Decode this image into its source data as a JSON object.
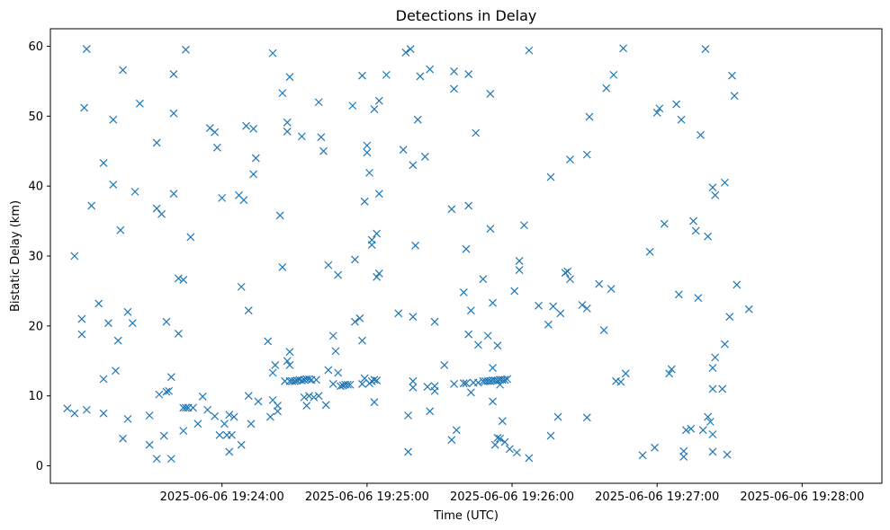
{
  "chart_data": {
    "type": "scatter",
    "title": "Detections in Delay",
    "xlabel": "Time (UTC)",
    "ylabel": "Bistatic Delay (km)",
    "x_ticks": [
      "2025-06-06 19:24:00",
      "2025-06-06 19:25:00",
      "2025-06-06 19:26:00",
      "2025-06-06 19:27:00",
      "2025-06-06 19:28:00"
    ],
    "y_ticks": [
      "0",
      "10",
      "20",
      "30",
      "40",
      "50",
      "60"
    ],
    "xlim": [
      "2025-06-06 19:22:49",
      "2025-06-06 19:28:33"
    ],
    "ylim": [
      -2.5,
      62.5
    ],
    "grid": false,
    "marker": "x",
    "color": "#1f77b4",
    "x_start_time": "2025-06-06 19:22:56",
    "points": [
      [
        0,
        8.2
      ],
      [
        3,
        7.5
      ],
      [
        3,
        30
      ],
      [
        6,
        18.8
      ],
      [
        6,
        21
      ],
      [
        7,
        51.2
      ],
      [
        8,
        8
      ],
      [
        8,
        59.6
      ],
      [
        10,
        37.2
      ],
      [
        13,
        23.2
      ],
      [
        15,
        7.5
      ],
      [
        15,
        43.3
      ],
      [
        15,
        12.4
      ],
      [
        17,
        20.4
      ],
      [
        19,
        49.5
      ],
      [
        19,
        40.2
      ],
      [
        20,
        13.6
      ],
      [
        21,
        17.9
      ],
      [
        22,
        33.7
      ],
      [
        23,
        3.9
      ],
      [
        23,
        56.6
      ],
      [
        25,
        22
      ],
      [
        25,
        6.7
      ],
      [
        27,
        20.4
      ],
      [
        28,
        39.2
      ],
      [
        30,
        51.8
      ],
      [
        34,
        7.2
      ],
      [
        34,
        3
      ],
      [
        37,
        1
      ],
      [
        37,
        46.2
      ],
      [
        37,
        36.8
      ],
      [
        38,
        10.2
      ],
      [
        39,
        36
      ],
      [
        40,
        4.3
      ],
      [
        41,
        10.6
      ],
      [
        41,
        20.6
      ],
      [
        42,
        10.7
      ],
      [
        43,
        12.7
      ],
      [
        43,
        1
      ],
      [
        44,
        50.4
      ],
      [
        44,
        56
      ],
      [
        44,
        38.9
      ],
      [
        46,
        18.9
      ],
      [
        46,
        26.8
      ],
      [
        48,
        5
      ],
      [
        48,
        8.3
      ],
      [
        48,
        26.6
      ],
      [
        49,
        59.5
      ],
      [
        49,
        8.3
      ],
      [
        50,
        8.3
      ],
      [
        51,
        32.7
      ],
      [
        52,
        8.3
      ],
      [
        54,
        6
      ],
      [
        56,
        9.9
      ],
      [
        58,
        8
      ],
      [
        59,
        48.3
      ],
      [
        61,
        47.7
      ],
      [
        61,
        7.1
      ],
      [
        62,
        45.5
      ],
      [
        63,
        4.4
      ],
      [
        64,
        38.3
      ],
      [
        65,
        6
      ],
      [
        66,
        4.4
      ],
      [
        67,
        2
      ],
      [
        67,
        7.3
      ],
      [
        68,
        4.4
      ],
      [
        69,
        7
      ],
      [
        71,
        38.7
      ],
      [
        72,
        25.6
      ],
      [
        72,
        3
      ],
      [
        73,
        38
      ],
      [
        74,
        48.6
      ],
      [
        75,
        10
      ],
      [
        75,
        22.2
      ],
      [
        76,
        6
      ],
      [
        77,
        41.7
      ],
      [
        77,
        48.2
      ],
      [
        78,
        44
      ],
      [
        79,
        9.2
      ],
      [
        83,
        17.8
      ],
      [
        84,
        7
      ],
      [
        85,
        13.3
      ],
      [
        85,
        9.4
      ],
      [
        85,
        59
      ],
      [
        86,
        14.4
      ],
      [
        87,
        7.8
      ],
      [
        87,
        8.6
      ],
      [
        88,
        35.8
      ],
      [
        89,
        53.3
      ],
      [
        89,
        28.4
      ],
      [
        90,
        12.1
      ],
      [
        91,
        49.1
      ],
      [
        91,
        47.8
      ],
      [
        91,
        15
      ],
      [
        92,
        16.3
      ],
      [
        92,
        55.6
      ],
      [
        92,
        14.4
      ],
      [
        92,
        12.1
      ],
      [
        93,
        12.1
      ],
      [
        94,
        12.1
      ],
      [
        95,
        12.2
      ],
      [
        96,
        12.3
      ],
      [
        97,
        12.2
      ],
      [
        97,
        47.1
      ],
      [
        98,
        12.3
      ],
      [
        98,
        9.8
      ],
      [
        99,
        12.4
      ],
      [
        99,
        8.6
      ],
      [
        100,
        12.4
      ],
      [
        100,
        10
      ],
      [
        101,
        12.3
      ],
      [
        102,
        9.8
      ],
      [
        103,
        12.3
      ],
      [
        104,
        10
      ],
      [
        104,
        52
      ],
      [
        105,
        47
      ],
      [
        106,
        45
      ],
      [
        107,
        8.7
      ],
      [
        108,
        13.7
      ],
      [
        108,
        28.7
      ],
      [
        110,
        11.7
      ],
      [
        110,
        18.6
      ],
      [
        111,
        16.4
      ],
      [
        112,
        27.3
      ],
      [
        112,
        13.3
      ],
      [
        113,
        11.4
      ],
      [
        114,
        11.5
      ],
      [
        115,
        11.6
      ],
      [
        116,
        11.6
      ],
      [
        117,
        11.6
      ],
      [
        118,
        51.5
      ],
      [
        119,
        29.5
      ],
      [
        119,
        20.6
      ],
      [
        121,
        21.1
      ],
      [
        122,
        11.7
      ],
      [
        122,
        17.9
      ],
      [
        122,
        55.8
      ],
      [
        123,
        12.5
      ],
      [
        123,
        37.8
      ],
      [
        124,
        45.8
      ],
      [
        124,
        44.8
      ],
      [
        125,
        11.8
      ],
      [
        125,
        41.9
      ],
      [
        126,
        12.1
      ],
      [
        126,
        32.3
      ],
      [
        126,
        31.6
      ],
      [
        127,
        12.3
      ],
      [
        127,
        51
      ],
      [
        127,
        9.1
      ],
      [
        128,
        12.2
      ],
      [
        128,
        33.2
      ],
      [
        128,
        27
      ],
      [
        129,
        38.9
      ],
      [
        129,
        27.5
      ],
      [
        129,
        52.2
      ],
      [
        132,
        55.9
      ],
      [
        137,
        21.8
      ],
      [
        139,
        45.2
      ],
      [
        140,
        59.1
      ],
      [
        141,
        7.2
      ],
      [
        141,
        2
      ],
      [
        142,
        59.6
      ],
      [
        143,
        43
      ],
      [
        143,
        12.1
      ],
      [
        143,
        21.3
      ],
      [
        143,
        11.2
      ],
      [
        144,
        31.5
      ],
      [
        145,
        49.5
      ],
      [
        146,
        55.7
      ],
      [
        148,
        44.2
      ],
      [
        149,
        11.3
      ],
      [
        150,
        56.7
      ],
      [
        150,
        7.8
      ],
      [
        152,
        11.4
      ],
      [
        152,
        10.7
      ],
      [
        152,
        20.6
      ],
      [
        156,
        14.4
      ],
      [
        159,
        3.7
      ],
      [
        159,
        36.7
      ],
      [
        160,
        11.7
      ],
      [
        160,
        56.4
      ],
      [
        160,
        53.9
      ],
      [
        161,
        5.1
      ],
      [
        164,
        11.8
      ],
      [
        164,
        24.8
      ],
      [
        165,
        11.8
      ],
      [
        165,
        31
      ],
      [
        166,
        18.8
      ],
      [
        166,
        37.2
      ],
      [
        166,
        56
      ],
      [
        167,
        22.2
      ],
      [
        167,
        10.5
      ],
      [
        168,
        11.9
      ],
      [
        169,
        47.6
      ],
      [
        170,
        17.3
      ],
      [
        170,
        11.9
      ],
      [
        172,
        12.1
      ],
      [
        172,
        26.7
      ],
      [
        173,
        12.1
      ],
      [
        174,
        12.1
      ],
      [
        174,
        18.6
      ],
      [
        175,
        12.1
      ],
      [
        175,
        53.2
      ],
      [
        175,
        33.9
      ],
      [
        176,
        12.2
      ],
      [
        176,
        23.3
      ],
      [
        176,
        14
      ],
      [
        176,
        9.2
      ],
      [
        177,
        12.2
      ],
      [
        177,
        3
      ],
      [
        178,
        12.2
      ],
      [
        178,
        17.2
      ],
      [
        178,
        4
      ],
      [
        179,
        12.3
      ],
      [
        179,
        11.6
      ],
      [
        179,
        3.9
      ],
      [
        180,
        12.3
      ],
      [
        180,
        6.4
      ],
      [
        181,
        12.3
      ],
      [
        181,
        3.4
      ],
      [
        182,
        12.4
      ],
      [
        183,
        2.4
      ],
      [
        185,
        25
      ],
      [
        186,
        1.9
      ],
      [
        187,
        29.3
      ],
      [
        187,
        28
      ],
      [
        189,
        34.4
      ],
      [
        191,
        59.4
      ],
      [
        191,
        1.1
      ],
      [
        195,
        22.9
      ],
      [
        199,
        20.2
      ],
      [
        200,
        41.3
      ],
      [
        200,
        4.3
      ],
      [
        201,
        22.8
      ],
      [
        203,
        7
      ],
      [
        204,
        21.8
      ],
      [
        206,
        27.6
      ],
      [
        207,
        27.8
      ],
      [
        208,
        43.8
      ],
      [
        208,
        26.7
      ],
      [
        213,
        23
      ],
      [
        215,
        6.9
      ],
      [
        215,
        22.5
      ],
      [
        215,
        44.5
      ],
      [
        216,
        49.9
      ],
      [
        220,
        26
      ],
      [
        222,
        19.4
      ],
      [
        223,
        54
      ],
      [
        225,
        25.3
      ],
      [
        226,
        55.9
      ],
      [
        227,
        12.1
      ],
      [
        229,
        12
      ],
      [
        230,
        59.7
      ],
      [
        231,
        13.2
      ],
      [
        238,
        1.5
      ],
      [
        241,
        30.6
      ],
      [
        243,
        2.6
      ],
      [
        244,
        50.5
      ],
      [
        245,
        51.1
      ],
      [
        247,
        34.6
      ],
      [
        249,
        13.2
      ],
      [
        250,
        13.8
      ],
      [
        252,
        51.7
      ],
      [
        253,
        24.5
      ],
      [
        254,
        49.5
      ],
      [
        255,
        1.3
      ],
      [
        255,
        2.1
      ],
      [
        256,
        5.1
      ],
      [
        258,
        5.3
      ],
      [
        259,
        35
      ],
      [
        260,
        33.6
      ],
      [
        261,
        24
      ],
      [
        262,
        47.3
      ],
      [
        263,
        5.1
      ],
      [
        264,
        59.6
      ],
      [
        265,
        32.8
      ],
      [
        265,
        7
      ],
      [
        266,
        6.3
      ],
      [
        267,
        2
      ],
      [
        267,
        4.5
      ],
      [
        267,
        14
      ],
      [
        267,
        11
      ],
      [
        267,
        39.8
      ],
      [
        268,
        15.5
      ],
      [
        268,
        38.7
      ],
      [
        271,
        11
      ],
      [
        272,
        17.4
      ],
      [
        272,
        40.5
      ],
      [
        273,
        1.6
      ],
      [
        274,
        21.3
      ],
      [
        275,
        55.8
      ],
      [
        276,
        52.9
      ],
      [
        277,
        25.9
      ],
      [
        282,
        22.4
      ]
    ]
  }
}
